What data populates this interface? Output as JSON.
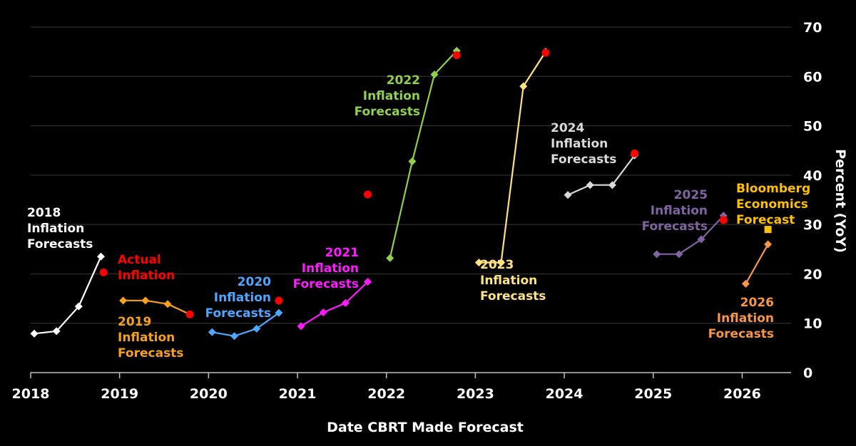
{
  "chart_data": {
    "type": "line",
    "xlabel": "Date CBRT Made Forecast",
    "ylabel": "Percent (YoY)",
    "xlim": [
      2018.0,
      2026.55
    ],
    "ylim": [
      0,
      70
    ],
    "x_ticks": [
      {
        "value": 2018,
        "label": "2018"
      },
      {
        "value": 2019,
        "label": "2019"
      },
      {
        "value": 2020,
        "label": "2020"
      },
      {
        "value": 2021,
        "label": "2021"
      },
      {
        "value": 2022,
        "label": "2022"
      },
      {
        "value": 2023,
        "label": "2023"
      },
      {
        "value": 2024,
        "label": "2024"
      },
      {
        "value": 2025,
        "label": "2025"
      },
      {
        "value": 2026,
        "label": "2026"
      }
    ],
    "y_ticks": [
      0,
      10,
      20,
      30,
      40,
      50,
      60,
      70
    ],
    "grid": true,
    "series": [
      {
        "color": "#ffffff",
        "label": [
          "2018",
          "Inflation",
          "Forecasts"
        ],
        "points": [
          [
            2018.04,
            7.9
          ],
          [
            2018.29,
            8.4
          ],
          [
            2018.54,
            13.4
          ],
          [
            2018.79,
            23.5
          ]
        ]
      },
      {
        "color": "#f7a11a",
        "label": [
          "2019",
          "Inflation",
          "Forecasts"
        ],
        "points": [
          [
            2019.04,
            14.6
          ],
          [
            2019.29,
            14.6
          ],
          [
            2019.54,
            13.9
          ],
          [
            2019.79,
            11.8
          ]
        ]
      },
      {
        "color": "#4da6ff",
        "label": [
          "2020",
          "Inflation",
          "Forecasts"
        ],
        "points": [
          [
            2020.04,
            8.2
          ],
          [
            2020.29,
            7.4
          ],
          [
            2020.54,
            8.9
          ],
          [
            2020.79,
            12.1
          ]
        ]
      },
      {
        "color": "#ff1aff",
        "label": [
          "2021",
          "Inflation",
          "Forecasts"
        ],
        "points": [
          [
            2021.04,
            9.4
          ],
          [
            2021.29,
            12.2
          ],
          [
            2021.54,
            14.1
          ],
          [
            2021.79,
            18.4
          ]
        ]
      },
      {
        "color": "#8fd14f",
        "label": [
          "2022",
          "Inflation",
          "Forecasts"
        ],
        "points": [
          [
            2022.04,
            23.2
          ],
          [
            2022.29,
            42.8
          ],
          [
            2022.54,
            60.4
          ],
          [
            2022.79,
            65.2
          ]
        ]
      },
      {
        "color": "#ffe380",
        "label": [
          "2023",
          "Inflation",
          "Forecasts"
        ],
        "points": [
          [
            2023.04,
            22.3
          ],
          [
            2023.29,
            22.3
          ],
          [
            2023.54,
            58.0
          ],
          [
            2023.79,
            65.0
          ]
        ]
      },
      {
        "color": "#d9d9d9",
        "label": [
          "2024",
          "Inflation",
          "Forecasts"
        ],
        "points": [
          [
            2024.04,
            36.0
          ],
          [
            2024.29,
            38.0
          ],
          [
            2024.54,
            38.0
          ],
          [
            2024.79,
            44.0
          ]
        ]
      },
      {
        "color": "#8064a2",
        "label": [
          "2025",
          "Inflation",
          "Forecasts"
        ],
        "points": [
          [
            2025.04,
            24.0
          ],
          [
            2025.29,
            24.0
          ],
          [
            2025.54,
            27.0
          ],
          [
            2025.79,
            31.8
          ]
        ]
      },
      {
        "color": "#f79646",
        "label": [
          "2026",
          "Inflation",
          "Forecasts"
        ],
        "points": [
          [
            2026.04,
            18.0
          ],
          [
            2026.29,
            26.0
          ]
        ]
      }
    ],
    "actual_inflation": {
      "color": "#ff0000",
      "label": [
        "Actual",
        "Inflation"
      ],
      "points": [
        [
          2018.82,
          20.3
        ],
        [
          2019.79,
          11.8
        ],
        [
          2020.79,
          14.6
        ],
        [
          2021.79,
          36.1
        ],
        [
          2022.79,
          64.3
        ],
        [
          2023.79,
          64.8
        ],
        [
          2024.79,
          44.4
        ],
        [
          2025.79,
          30.9
        ]
      ]
    },
    "bloomberg_forecast": {
      "color": "#ffc000",
      "label": [
        "Bloomberg",
        "Economics",
        "Forecast"
      ],
      "points": [
        [
          2026.29,
          29.0
        ]
      ]
    }
  }
}
